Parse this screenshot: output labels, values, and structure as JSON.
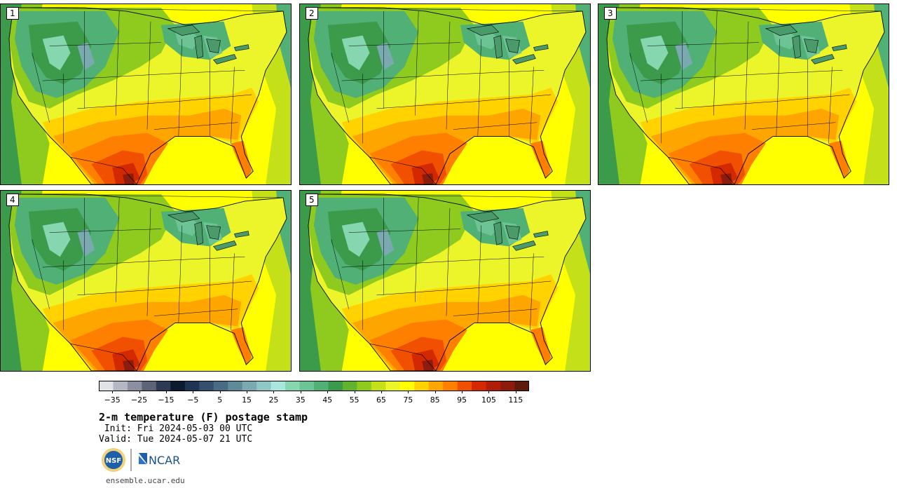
{
  "panels": [
    {
      "label": "1",
      "intensity": 1.0
    },
    {
      "label": "2",
      "intensity": 0.95
    },
    {
      "label": "3",
      "intensity": 0.9
    },
    {
      "label": "4",
      "intensity": 0.92
    },
    {
      "label": "5",
      "intensity": 0.97
    }
  ],
  "colorbar": {
    "colors": [
      "#e1e1e8",
      "#b5b7c4",
      "#8b8fa1",
      "#5e6478",
      "#2e3a55",
      "#0d1a30",
      "#1f3352",
      "#35506e",
      "#4a6b85",
      "#5f8a9a",
      "#7aa9b0",
      "#8fc6c6",
      "#a9e6dc",
      "#86d6b0",
      "#6cc495",
      "#50b076",
      "#3c9b4a",
      "#5fb32e",
      "#8fcb1f",
      "#c4e018",
      "#ecf42a",
      "#ffff00",
      "#ffd200",
      "#ffa500",
      "#ff7f00",
      "#f05000",
      "#d32800",
      "#b01e0a",
      "#8c1c0d",
      "#5e1a0c"
    ],
    "tick_labels": [
      "−35",
      "−25",
      "−15",
      "−5",
      "5",
      "15",
      "25",
      "35",
      "45",
      "55",
      "65",
      "75",
      "85",
      "95",
      "105",
      "115"
    ],
    "tick_values": [
      -35,
      -25,
      -15,
      -5,
      5,
      15,
      25,
      35,
      45,
      55,
      65,
      75,
      85,
      95,
      105,
      115
    ],
    "min": -40,
    "max": 120
  },
  "title": "2-m temperature (F) postage stamp",
  "init": " Init: Fri 2024-05-03 00 UTC",
  "valid": "Valid: Tue 2024-05-07 21 UTC",
  "logos": {
    "nsf": "NSF",
    "ncar": "NCAR"
  },
  "url": "ensemble.ucar.edu"
}
